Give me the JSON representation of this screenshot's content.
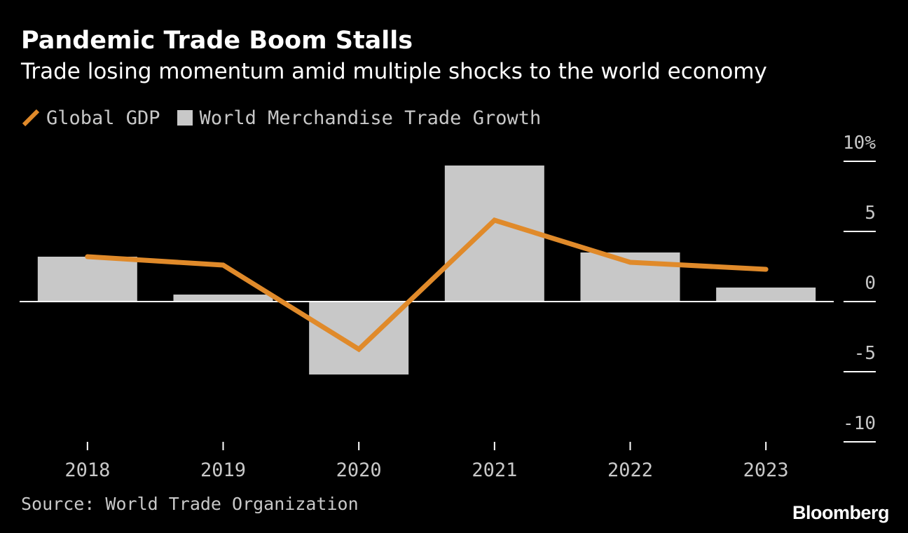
{
  "chart_data": {
    "type": "bar",
    "title": "Pandemic Trade Boom Stalls",
    "subtitle": "Trade losing momentum amid multiple shocks to the world economy",
    "categories": [
      "2018",
      "2019",
      "2020",
      "2021",
      "2022",
      "2023"
    ],
    "series": [
      {
        "name": "World Merchandise Trade Growth",
        "type": "bar",
        "color": "#c8c8c8",
        "values": [
          3.2,
          0.5,
          -5.2,
          9.7,
          3.5,
          1.0
        ]
      },
      {
        "name": "Global GDP",
        "type": "line",
        "color": "#e08a2a",
        "values": [
          3.2,
          2.6,
          -3.4,
          5.8,
          2.8,
          2.3
        ]
      }
    ],
    "y_ticks": [
      "10%",
      "5",
      "0",
      "-5",
      "-10"
    ],
    "ylim": [
      -10,
      10
    ],
    "legend_position": "top-left",
    "grid": false,
    "source": "Source: World Trade Organization",
    "brand": "Bloomberg"
  },
  "colors": {
    "background": "#000000",
    "text": "#ffffff",
    "muted_text": "#c8c8c8",
    "line": "#e08a2a",
    "bar": "#c8c8c8"
  }
}
